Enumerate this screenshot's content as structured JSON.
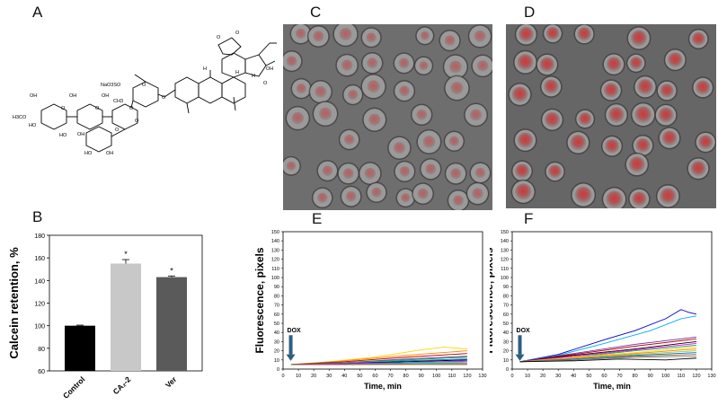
{
  "panels": {
    "a": "A",
    "b": "B",
    "c": "C",
    "d": "D",
    "e": "E",
    "f": "F"
  },
  "structure": {
    "labels": [
      "OH",
      "OH",
      "OH",
      "HO",
      "H3CO",
      "O",
      "O",
      "HO",
      "OH",
      "O",
      "O",
      "CH3",
      "NaO3SO",
      "O",
      "O",
      "HO",
      "OH",
      "O",
      "H",
      "H",
      "H",
      "O",
      "O",
      "OH",
      "O"
    ]
  },
  "colors": {
    "control_bar": "#000000",
    "ca_bar": "#c8c8c8",
    "ver_bar": "#5a5a5a",
    "micro_bg_c": "#6e6e6e",
    "micro_bg_d": "#666666",
    "cell_fluor": "#d83030",
    "arrow": "#2f5f7f"
  },
  "chart_data": [
    {
      "type": "bar",
      "panel": "B",
      "categories": [
        "Control",
        "CA₂-2",
        "Ver"
      ],
      "values": [
        100,
        155,
        143
      ],
      "errors": [
        0.5,
        3.5,
        1
      ],
      "significance": [
        "",
        "*",
        "*"
      ],
      "ylabel": "Calcein retention, %",
      "ylim": [
        60,
        180
      ],
      "yticks": [
        "60",
        "80",
        "100",
        "120",
        "140",
        "160",
        "180"
      ]
    },
    {
      "type": "line",
      "panel": "E",
      "xlabel": "Time, min",
      "ylabel": "Fluorescence, pixels",
      "xlim": [
        0,
        130
      ],
      "ylim": [
        0,
        150
      ],
      "xticks": [
        "0",
        "10",
        "20",
        "30",
        "40",
        "50",
        "60",
        "70",
        "80",
        "90",
        "100",
        "110",
        "120",
        "130"
      ],
      "yticks": [
        "0",
        "10",
        "20",
        "30",
        "40",
        "50",
        "60",
        "70",
        "80",
        "90",
        "100",
        "110",
        "120",
        "130",
        "140",
        "150"
      ],
      "annotation": "DOX",
      "annotation_x": 5,
      "series": [
        {
          "color": "#ffd200",
          "values": [
            [
              5,
              5
            ],
            [
              30,
              8
            ],
            [
              60,
              13
            ],
            [
              90,
              21
            ],
            [
              105,
              24
            ],
            [
              120,
              22
            ]
          ]
        },
        {
          "color": "#ff7f00",
          "values": [
            [
              5,
              5
            ],
            [
              40,
              9
            ],
            [
              80,
              15
            ],
            [
              120,
              20
            ]
          ]
        },
        {
          "color": "#c00000",
          "values": [
            [
              5,
              5
            ],
            [
              40,
              8
            ],
            [
              80,
              13
            ],
            [
              120,
              17
            ]
          ]
        },
        {
          "color": "#7030a0",
          "values": [
            [
              5,
              5
            ],
            [
              40,
              7
            ],
            [
              80,
              11
            ],
            [
              120,
              14
            ]
          ]
        },
        {
          "color": "#00b050",
          "values": [
            [
              5,
              5
            ],
            [
              40,
              7
            ],
            [
              80,
              10
            ],
            [
              120,
              13
            ]
          ]
        },
        {
          "color": "#0070c0",
          "values": [
            [
              5,
              5
            ],
            [
              40,
              6
            ],
            [
              80,
              9
            ],
            [
              120,
              11
            ]
          ]
        },
        {
          "color": "#000000",
          "values": [
            [
              5,
              5
            ],
            [
              40,
              6
            ],
            [
              80,
              8
            ],
            [
              120,
              10
            ]
          ]
        },
        {
          "color": "#ff00ff",
          "values": [
            [
              5,
              5
            ],
            [
              40,
              6
            ],
            [
              80,
              7
            ],
            [
              120,
              9
            ]
          ]
        },
        {
          "color": "#00b0f0",
          "values": [
            [
              5,
              5
            ],
            [
              40,
              5
            ],
            [
              80,
              7
            ],
            [
              120,
              8
            ]
          ]
        },
        {
          "color": "#92d050",
          "values": [
            [
              5,
              5
            ],
            [
              40,
              5
            ],
            [
              80,
              6
            ],
            [
              120,
              7
            ]
          ]
        },
        {
          "color": "#808080",
          "values": [
            [
              5,
              5
            ],
            [
              40,
              5
            ],
            [
              80,
              6
            ],
            [
              120,
              6
            ]
          ]
        },
        {
          "color": "#996633",
          "values": [
            [
              5,
              5
            ],
            [
              40,
              5
            ],
            [
              80,
              5
            ],
            [
              120,
              5
            ]
          ]
        }
      ]
    },
    {
      "type": "line",
      "panel": "F",
      "xlabel": "Time, min",
      "ylabel": "Fluorescence, pixels",
      "xlim": [
        0,
        130
      ],
      "ylim": [
        0,
        150
      ],
      "xticks": [
        "0",
        "10",
        "20",
        "30",
        "40",
        "50",
        "60",
        "70",
        "80",
        "90",
        "100",
        "110",
        "120",
        "130"
      ],
      "yticks": [
        "0",
        "10",
        "20",
        "30",
        "40",
        "50",
        "60",
        "70",
        "80",
        "90",
        "100",
        "110",
        "120",
        "130",
        "140",
        "150"
      ],
      "annotation": "DOX",
      "annotation_x": 5,
      "series": [
        {
          "color": "#0000cc",
          "values": [
            [
              5,
              8
            ],
            [
              30,
              16
            ],
            [
              60,
              32
            ],
            [
              80,
              42
            ],
            [
              100,
              55
            ],
            [
              110,
              65
            ],
            [
              115,
              62
            ],
            [
              120,
              60
            ]
          ]
        },
        {
          "color": "#00b0f0",
          "values": [
            [
              5,
              8
            ],
            [
              30,
              15
            ],
            [
              60,
              28
            ],
            [
              90,
              42
            ],
            [
              110,
              55
            ],
            [
              120,
              58
            ]
          ]
        },
        {
          "color": "#7030a0",
          "values": [
            [
              5,
              8
            ],
            [
              40,
              17
            ],
            [
              80,
              27
            ],
            [
              120,
              35
            ]
          ]
        },
        {
          "color": "#c00000",
          "values": [
            [
              5,
              8
            ],
            [
              40,
              16
            ],
            [
              80,
              25
            ],
            [
              120,
              33
            ]
          ]
        },
        {
          "color": "#000000",
          "values": [
            [
              5,
              8
            ],
            [
              40,
              15
            ],
            [
              80,
              22
            ],
            [
              120,
              30
            ]
          ]
        },
        {
          "color": "#ff00ff",
          "values": [
            [
              5,
              8
            ],
            [
              40,
              14
            ],
            [
              80,
              21
            ],
            [
              120,
              28
            ]
          ]
        },
        {
          "color": "#00b050",
          "values": [
            [
              5,
              8
            ],
            [
              40,
              13
            ],
            [
              80,
              20
            ],
            [
              120,
              26
            ]
          ]
        },
        {
          "color": "#ffd200",
          "values": [
            [
              5,
              8
            ],
            [
              40,
              13
            ],
            [
              80,
              18
            ],
            [
              120,
              24
            ]
          ]
        },
        {
          "color": "#ff7f00",
          "values": [
            [
              5,
              8
            ],
            [
              40,
              12
            ],
            [
              80,
              17
            ],
            [
              120,
              22
            ]
          ]
        },
        {
          "color": "#92d050",
          "values": [
            [
              5,
              8
            ],
            [
              40,
              11
            ],
            [
              80,
              16
            ],
            [
              120,
              20
            ]
          ]
        },
        {
          "color": "#0070c0",
          "values": [
            [
              5,
              8
            ],
            [
              40,
              11
            ],
            [
              80,
              15
            ],
            [
              120,
              18
            ]
          ]
        },
        {
          "color": "#996633",
          "values": [
            [
              5,
              8
            ],
            [
              40,
              10
            ],
            [
              80,
              14
            ],
            [
              120,
              16
            ]
          ]
        },
        {
          "color": "#808080",
          "values": [
            [
              5,
              8
            ],
            [
              40,
              10
            ],
            [
              80,
              13
            ],
            [
              120,
              14
            ]
          ]
        },
        {
          "color": "#000000",
          "values": [
            [
              5,
              8
            ],
            [
              40,
              9
            ],
            [
              70,
              11
            ],
            [
              100,
              10
            ],
            [
              120,
              12
            ]
          ]
        }
      ]
    }
  ]
}
